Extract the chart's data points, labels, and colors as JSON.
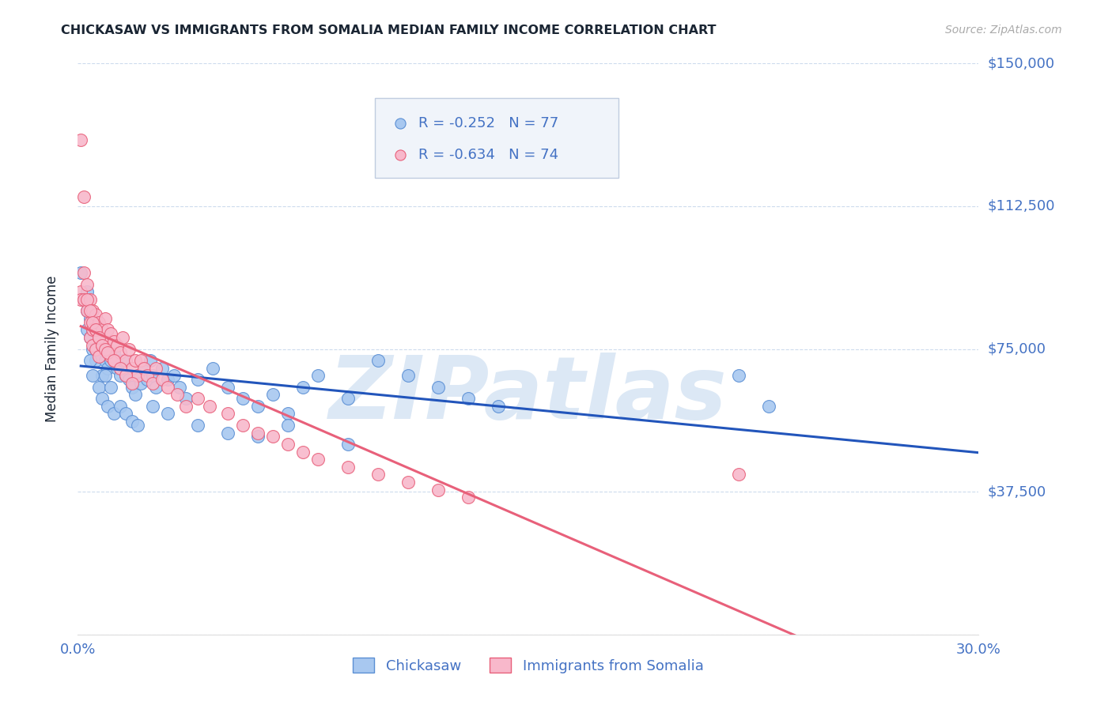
{
  "title": "CHICKASAW VS IMMIGRANTS FROM SOMALIA MEDIAN FAMILY INCOME CORRELATION CHART",
  "source": "Source: ZipAtlas.com",
  "ylabel": "Median Family Income",
  "yticks": [
    0,
    37500,
    75000,
    112500,
    150000
  ],
  "ytick_labels": [
    "",
    "$37,500",
    "$75,000",
    "$112,500",
    "$150,000"
  ],
  "xlim": [
    0.0,
    0.3
  ],
  "ylim": [
    0,
    150000
  ],
  "watermark": "ZIPatlas",
  "series": [
    {
      "name": "Chickasaw",
      "color": "#a8c8f0",
      "edge_color": "#5b8fd4",
      "R": -0.252,
      "N": 77,
      "line_color": "#2255bb",
      "points_x": [
        0.001,
        0.002,
        0.003,
        0.003,
        0.004,
        0.004,
        0.005,
        0.005,
        0.006,
        0.006,
        0.006,
        0.007,
        0.007,
        0.008,
        0.008,
        0.009,
        0.01,
        0.01,
        0.011,
        0.012,
        0.013,
        0.014,
        0.015,
        0.016,
        0.017,
        0.018,
        0.019,
        0.02,
        0.021,
        0.022,
        0.023,
        0.024,
        0.025,
        0.026,
        0.028,
        0.03,
        0.032,
        0.034,
        0.036,
        0.04,
        0.045,
        0.05,
        0.055,
        0.06,
        0.065,
        0.07,
        0.075,
        0.08,
        0.09,
        0.1,
        0.11,
        0.12,
        0.13,
        0.14,
        0.003,
        0.004,
        0.005,
        0.006,
        0.007,
        0.008,
        0.009,
        0.01,
        0.011,
        0.012,
        0.014,
        0.016,
        0.018,
        0.02,
        0.025,
        0.03,
        0.04,
        0.05,
        0.06,
        0.07,
        0.09,
        0.22,
        0.23
      ],
      "points_y": [
        95000,
        88000,
        85000,
        80000,
        83000,
        78000,
        80000,
        75000,
        82000,
        77000,
        72000,
        78000,
        73000,
        80000,
        68000,
        72000,
        75000,
        70000,
        72000,
        74000,
        70000,
        68000,
        72000,
        68000,
        67000,
        65000,
        63000,
        68000,
        66000,
        70000,
        67000,
        72000,
        68000,
        65000,
        70000,
        67000,
        68000,
        65000,
        62000,
        67000,
        70000,
        65000,
        62000,
        60000,
        63000,
        58000,
        65000,
        68000,
        62000,
        72000,
        68000,
        65000,
        62000,
        60000,
        90000,
        72000,
        68000,
        75000,
        65000,
        62000,
        68000,
        60000,
        65000,
        58000,
        60000,
        58000,
        56000,
        55000,
        60000,
        58000,
        55000,
        53000,
        52000,
        55000,
        50000,
        68000,
        60000
      ]
    },
    {
      "name": "Immigrants from Somalia",
      "color": "#f8b8cb",
      "edge_color": "#e8607a",
      "R": -0.634,
      "N": 74,
      "line_color": "#e8607a",
      "points_x": [
        0.001,
        0.001,
        0.002,
        0.002,
        0.003,
        0.003,
        0.004,
        0.004,
        0.004,
        0.005,
        0.005,
        0.005,
        0.006,
        0.006,
        0.006,
        0.007,
        0.007,
        0.007,
        0.008,
        0.008,
        0.009,
        0.009,
        0.01,
        0.01,
        0.011,
        0.011,
        0.012,
        0.012,
        0.013,
        0.014,
        0.015,
        0.016,
        0.017,
        0.018,
        0.019,
        0.02,
        0.021,
        0.022,
        0.023,
        0.025,
        0.026,
        0.028,
        0.03,
        0.033,
        0.036,
        0.04,
        0.044,
        0.05,
        0.055,
        0.06,
        0.065,
        0.07,
        0.075,
        0.08,
        0.09,
        0.1,
        0.11,
        0.12,
        0.13,
        0.003,
        0.004,
        0.005,
        0.006,
        0.007,
        0.008,
        0.009,
        0.01,
        0.012,
        0.014,
        0.016,
        0.018,
        0.001,
        0.002,
        0.22
      ],
      "points_y": [
        90000,
        88000,
        95000,
        88000,
        92000,
        85000,
        88000,
        82000,
        78000,
        85000,
        80000,
        76000,
        84000,
        80000,
        75000,
        82000,
        78000,
        73000,
        80000,
        76000,
        83000,
        77000,
        80000,
        75000,
        79000,
        73000,
        77000,
        72000,
        76000,
        74000,
        78000,
        72000,
        75000,
        70000,
        72000,
        68000,
        72000,
        70000,
        68000,
        66000,
        70000,
        67000,
        65000,
        63000,
        60000,
        62000,
        60000,
        58000,
        55000,
        53000,
        52000,
        50000,
        48000,
        46000,
        44000,
        42000,
        40000,
        38000,
        36000,
        88000,
        85000,
        82000,
        80000,
        78000,
        76000,
        75000,
        74000,
        72000,
        70000,
        68000,
        66000,
        130000,
        115000,
        42000
      ]
    }
  ],
  "legend": {
    "chickasaw_R": "-0.252",
    "chickasaw_N": "77",
    "somalia_R": "-0.634",
    "somalia_N": "74"
  },
  "title_color": "#1a2533",
  "axis_label_color": "#4472c4",
  "tick_color": "#5b8fd4",
  "grid_color": "#c8d8ec",
  "background_color": "#ffffff",
  "watermark_color": "#dce8f5",
  "legend_box_color": "#f0f4fa",
  "legend_border_color": "#c0cce0"
}
